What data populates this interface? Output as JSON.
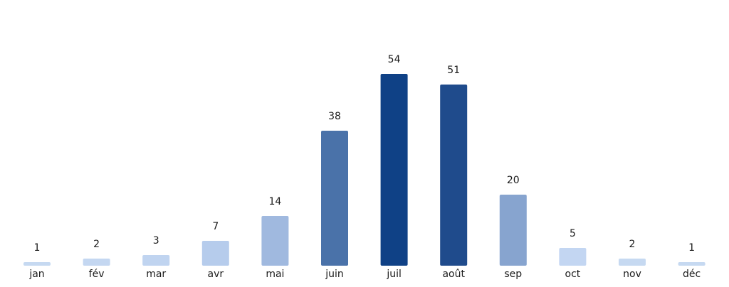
{
  "chart_data": {
    "type": "bar",
    "categories": [
      "jan",
      "fév",
      "mar",
      "avr",
      "mai",
      "juin",
      "juil",
      "août",
      "sep",
      "oct",
      "nov",
      "déc"
    ],
    "values": [
      1,
      2,
      3,
      7,
      14,
      38,
      54,
      51,
      20,
      5,
      2,
      1
    ],
    "colors": [
      "#c6d9f1",
      "#c4d7f1",
      "#c0d4f0",
      "#b6ccec",
      "#a0b9df",
      "#4a72a9",
      "#0f4186",
      "#1f4b8c",
      "#87a4cf",
      "#c3d6f2",
      "#c6d9f1",
      "#c6d9f1"
    ]
  }
}
